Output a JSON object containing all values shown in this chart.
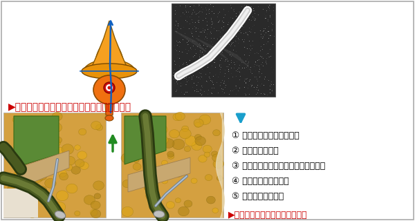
{
  "bg_color": "#f2f2f2",
  "border_color": "#aaaaaa",
  "headline_text": "▶チューブの先端方向と胆管走行軸を合わせる",
  "headline_color": "#cc0000",
  "arrow_color": "#1a9fcc",
  "items": [
    "① 造影チューブを少し引く",
    "② スコープを引く",
    "③ スコープのアップアングルを緩める",
    "④ 左アングルをかける",
    "⑤ 鉢子起上を緩める"
  ],
  "footer_text": "▶これらの操作をほぼ同時に行う",
  "footer_color": "#cc0000",
  "item_color": "#000000",
  "item_fontsize": 9.0,
  "headline_fontsize": 10.0
}
